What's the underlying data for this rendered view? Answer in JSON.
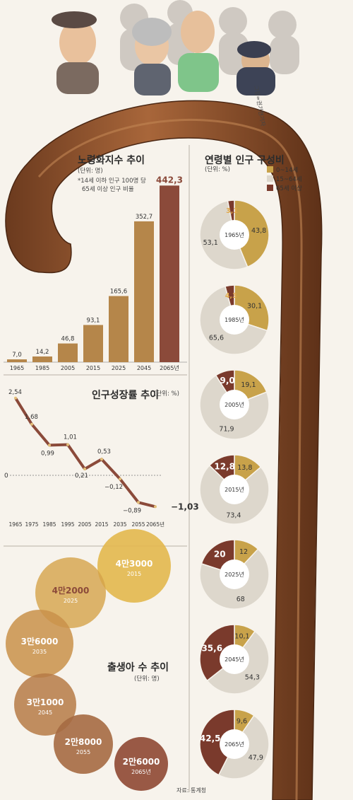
{
  "illustration_credit": "그림=권기현기자",
  "source": "자료: 통계청",
  "colors": {
    "accent_gold": "#c8a24a",
    "accent_brown": "#8b4a3a",
    "mid": "#b5864a",
    "beige": "#ddd7cc",
    "dark_red": "#7a3a2c"
  },
  "chart_data": [
    {
      "type": "bar",
      "title": "노령화지수 추이",
      "unit": "(단위: 명)",
      "note": [
        "*14세 이하 인구 100명 당",
        "65세 이상 인구 비율"
      ],
      "categories": [
        "1965",
        "1985",
        "2005",
        "2015",
        "2025",
        "2045",
        "2065년"
      ],
      "values": [
        7.0,
        14.2,
        46.8,
        93.1,
        165.6,
        352.7,
        442.3
      ],
      "value_labels": [
        "7,0",
        "14,2",
        "46,8",
        "93,1",
        "165,6",
        "352,7",
        "442,3"
      ],
      "ylim": [
        0,
        450
      ]
    },
    {
      "type": "line",
      "title": "인구성장률 추이",
      "unit": "(단위: %)",
      "x": [
        "1965",
        "1975",
        "1985",
        "1995",
        "2005",
        "2015",
        "2035",
        "2055",
        "2065년"
      ],
      "values": [
        2.54,
        1.68,
        0.99,
        1.01,
        0.21,
        0.53,
        -0.12,
        -0.89,
        -1.03
      ],
      "value_labels": [
        "2,54",
        "1,68",
        "0,99",
        "1,01",
        "0,21",
        "0,53",
        "−0,12",
        "−0,89",
        "−1,03"
      ],
      "zero_label": "0",
      "ylim": [
        -1.2,
        2.7
      ]
    },
    {
      "type": "pie",
      "title": "연령별 인구 구성비",
      "unit": "(단위: %)",
      "legend": [
        "0~14세",
        "15~64세",
        "65세 이상"
      ],
      "years": [
        "1965년",
        "1985년",
        "2005년",
        "2015년",
        "2025년",
        "2045년",
        "2065년"
      ],
      "series": [
        {
          "name": "0~14세",
          "values": [
            43.8,
            30.1,
            19.1,
            13.8,
            12,
            10.1,
            9.6
          ],
          "labels": [
            "43,8",
            "30,1",
            "19,1",
            "13,8",
            "12",
            "10,1",
            "9,6"
          ]
        },
        {
          "name": "15~64세",
          "values": [
            53.1,
            65.6,
            71.9,
            73.4,
            68,
            54.3,
            47.9
          ],
          "labels": [
            "53,1",
            "65,6",
            "71,9",
            "73,4",
            "68",
            "54,3",
            "47,9"
          ]
        },
        {
          "name": "65세 이상",
          "values": [
            3.1,
            4.3,
            9.0,
            12.8,
            20,
            35.6,
            42.5
          ],
          "labels": [
            "3,1",
            "4,3",
            "9,0",
            "12,8",
            "20",
            "35,6",
            "42,5"
          ]
        }
      ]
    },
    {
      "type": "bubble",
      "title": "출생아 수 추이",
      "unit": "(단위: 명)",
      "years": [
        "2015",
        "2025",
        "2035",
        "2045",
        "2055",
        "2065년"
      ],
      "values": [
        43000,
        42000,
        36000,
        31000,
        28000,
        26000
      ],
      "value_labels": [
        "4만3000",
        "4만2000",
        "3만6000",
        "3만1000",
        "2만8000",
        "2만6000"
      ]
    }
  ]
}
